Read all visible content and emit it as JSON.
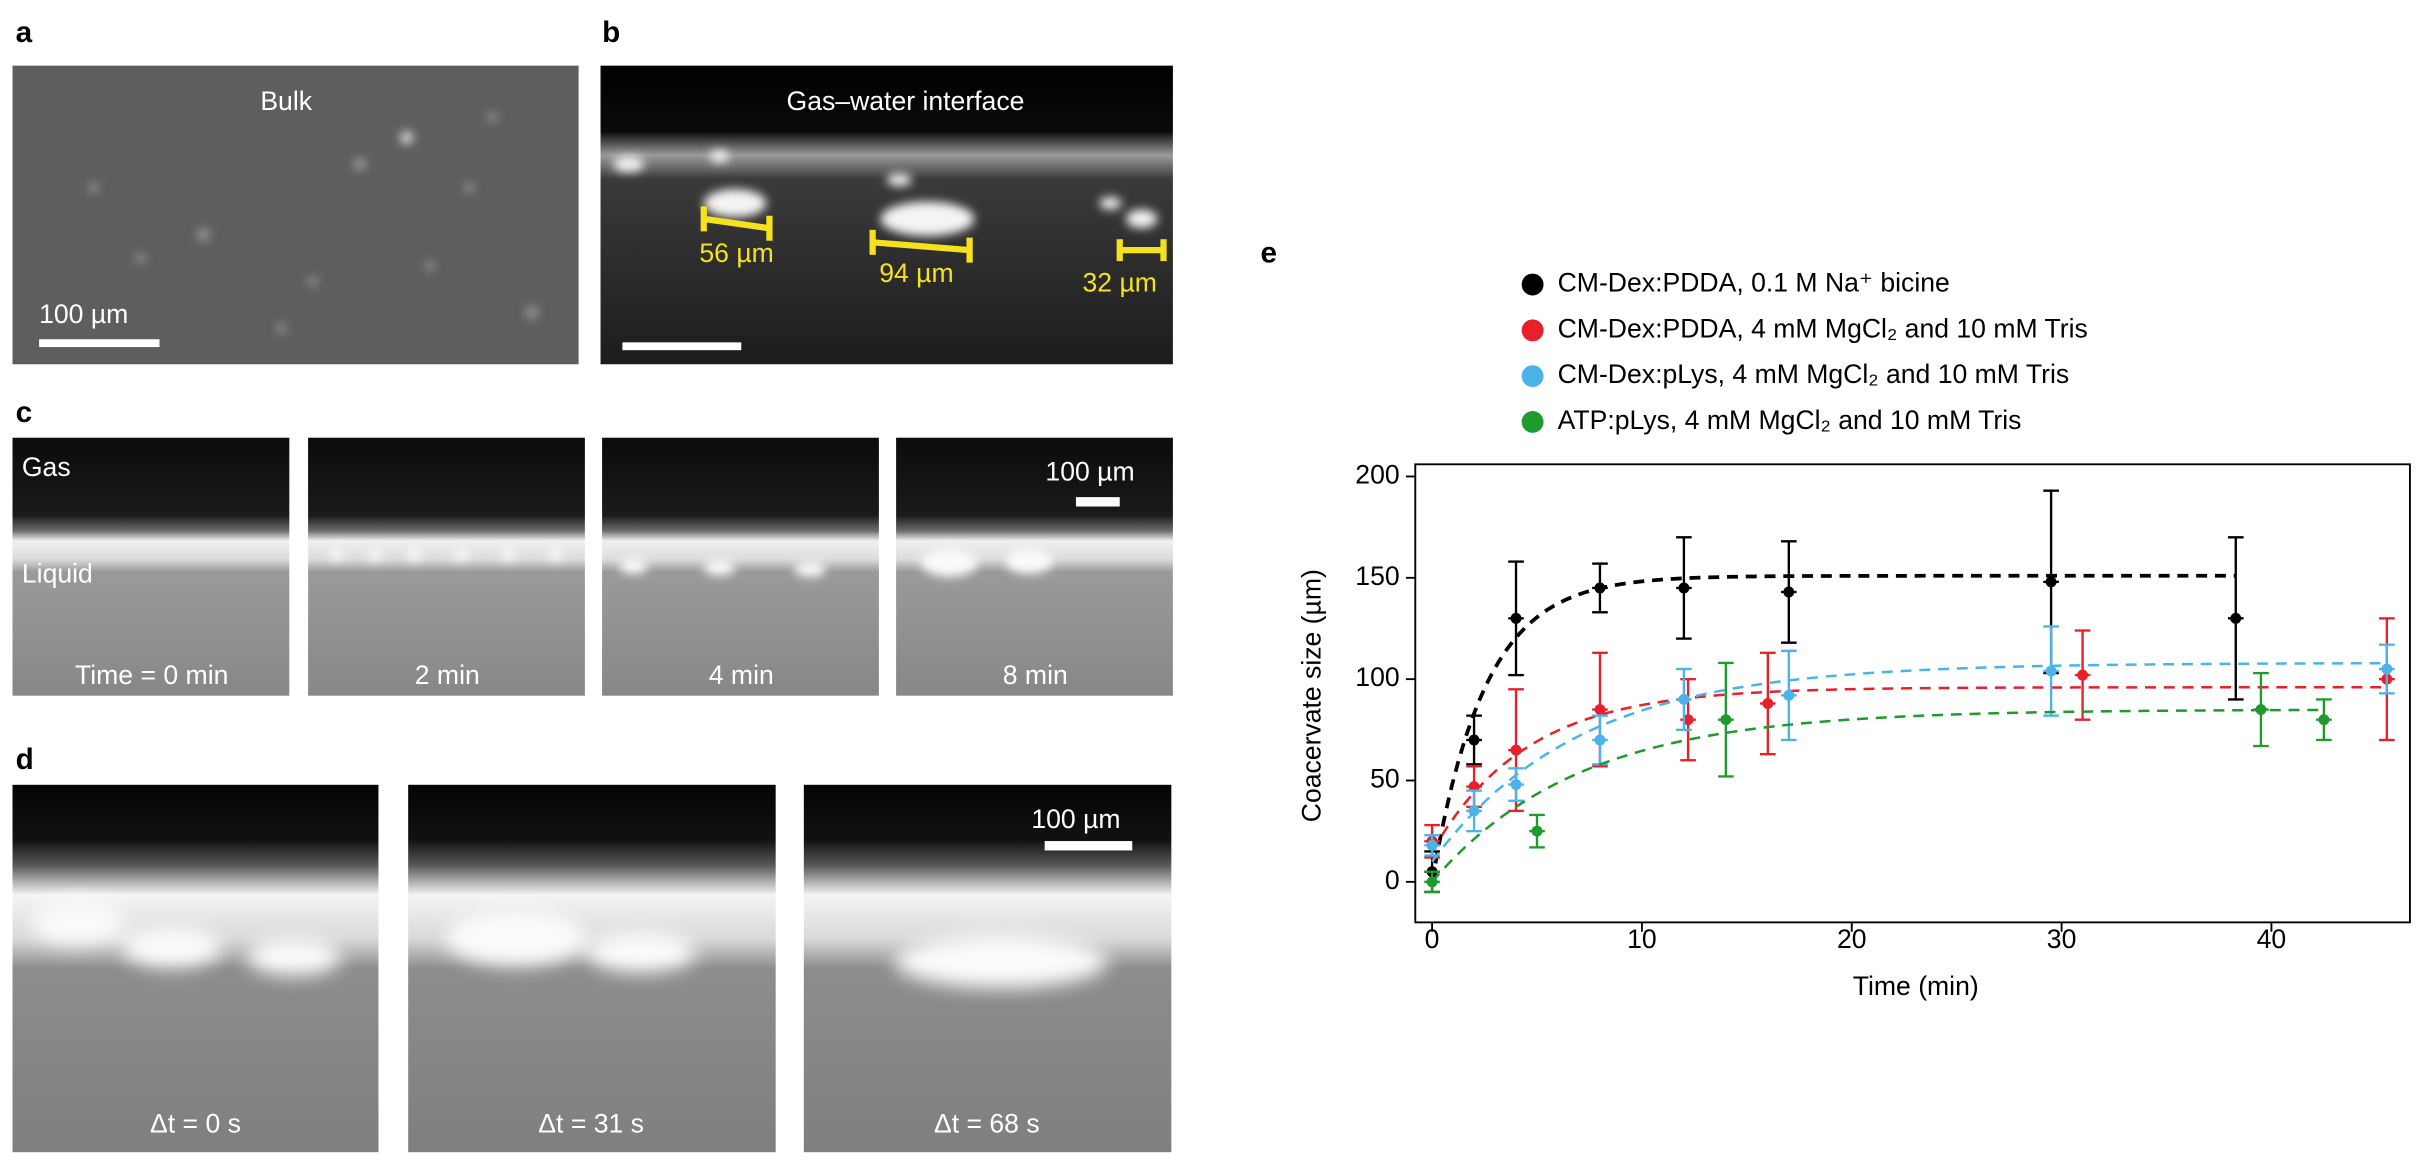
{
  "figure": {
    "a": {
      "letter": "a",
      "title": "Bulk",
      "scale": "100 µm"
    },
    "b": {
      "letter": "b",
      "title": "Gas–water interface",
      "sizes": [
        "56 µm",
        "94 µm",
        "32 µm"
      ]
    },
    "c": {
      "letter": "c",
      "gas": "Gas",
      "liquid": "Liquid",
      "scale": "100 µm",
      "times": [
        "Time = 0 min",
        "2 min",
        "4 min",
        "8 min"
      ]
    },
    "d": {
      "letter": "d",
      "scale": "100 µm",
      "times": [
        "Δt = 0 s",
        "Δt = 31 s",
        "Δt = 68 s"
      ]
    },
    "e": {
      "letter": "e"
    }
  },
  "chart_data": {
    "type": "scatter",
    "x_label": "Time (min)",
    "y_label": "Coacervate size (µm)",
    "xlim": [
      -0.8,
      46.6
    ],
    "ylim": [
      -20,
      206
    ],
    "xticks": [
      0,
      10,
      20,
      30,
      40
    ],
    "yticks": [
      0,
      50,
      100,
      150,
      200
    ],
    "series": [
      {
        "name": "CM-Dex:PDDA, 0.1 M Na⁺ bicine",
        "color": "#000000",
        "x": [
          0,
          2,
          4,
          8,
          12,
          17,
          29.5,
          38.3
        ],
        "values": [
          5,
          70,
          130,
          145,
          145,
          143,
          148,
          130
        ],
        "errors": [
          10,
          12,
          28,
          12,
          25,
          25,
          45,
          40
        ],
        "fit": {
          "y0": 0,
          "plateau": 151,
          "tau": 2.5
        }
      },
      {
        "name": "CM-Dex:PDDA, 4 mM MgCl₂ and 10 mM Tris",
        "color": "#e8202a",
        "x": [
          0,
          2,
          4,
          8,
          12.2,
          16,
          31,
          45.5
        ],
        "values": [
          20,
          47,
          65,
          85,
          80,
          88,
          102,
          100
        ],
        "errors": [
          8,
          10,
          30,
          28,
          20,
          25,
          22,
          30
        ],
        "fit": {
          "y0": 15,
          "plateau": 96,
          "tau": 4.5
        }
      },
      {
        "name": "CM-Dex:pLys, 4 mM MgCl₂ and 10 mM Tris",
        "color": "#4ab4ea",
        "x": [
          0,
          2,
          4,
          8,
          12,
          17,
          29.5,
          45.5
        ],
        "values": [
          18,
          35,
          48,
          70,
          90,
          92,
          104,
          105
        ],
        "errors": [
          5,
          10,
          8,
          12,
          15,
          22,
          22,
          12
        ],
        "fit": {
          "y0": 10,
          "plateau": 108,
          "tau": 7
        }
      },
      {
        "name": "ATP:pLys, 4 mM MgCl₂ and 10 mM Tris",
        "color": "#1f9a2e",
        "x": [
          0,
          5,
          14,
          39.5,
          42.5
        ],
        "values": [
          0,
          25,
          80,
          85,
          80
        ],
        "errors": [
          5,
          8,
          28,
          18,
          10
        ],
        "fit": {
          "y0": 0,
          "plateau": 85,
          "tau": 7
        }
      }
    ]
  }
}
